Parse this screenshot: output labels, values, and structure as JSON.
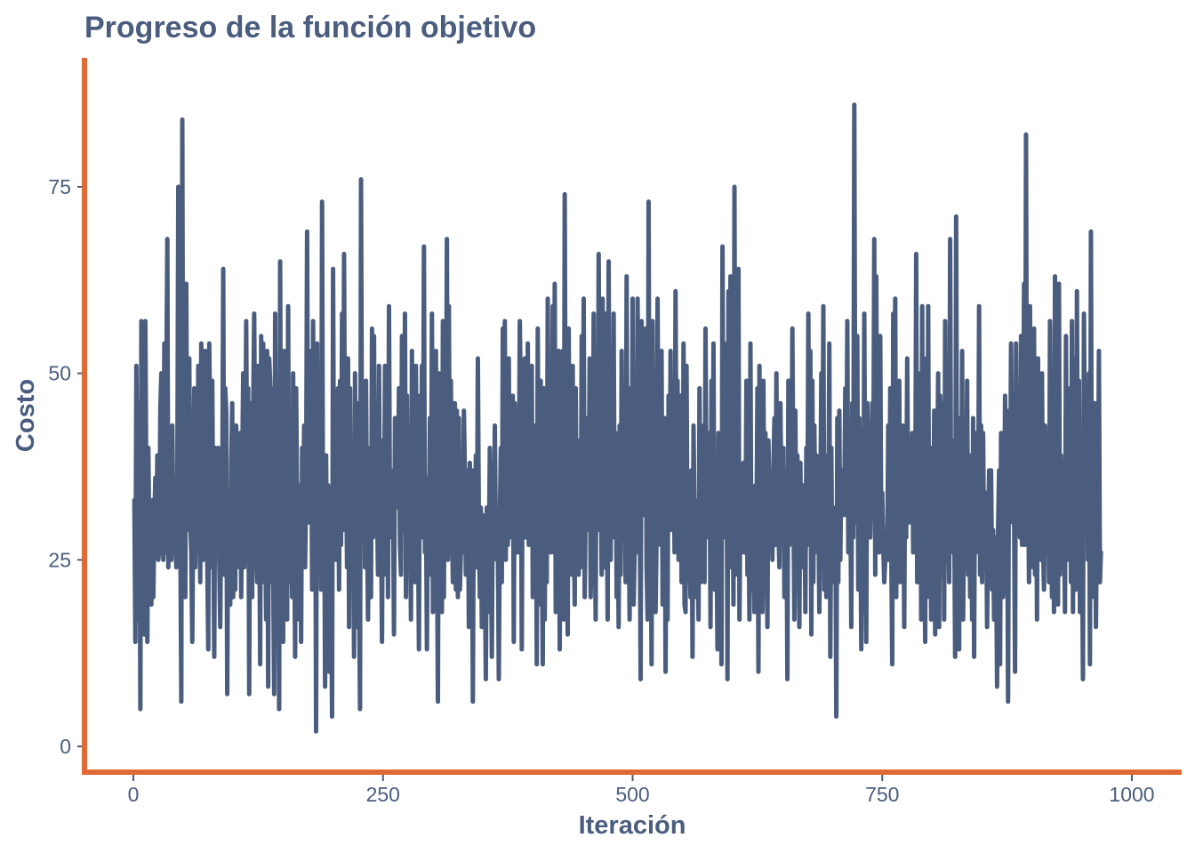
{
  "chart_data": {
    "type": "line",
    "title": "Progreso de la función objetivo",
    "xlabel": "Iteración",
    "ylabel": "Costo",
    "xlim": [
      0,
      1000
    ],
    "ylim": [
      0,
      90
    ],
    "x_ticks": [
      0,
      250,
      500,
      750,
      1000
    ],
    "y_ticks": [
      0,
      25,
      50,
      75
    ],
    "x_tick_labels": [
      "0",
      "250",
      "500",
      "750",
      "1000"
    ],
    "y_tick_labels": [
      "0",
      "25",
      "50",
      "75"
    ],
    "grid": false,
    "legend": "none",
    "series": [
      {
        "x_start": 1,
        "x_step": 1,
        "values": [
          33,
          14,
          51,
          28,
          17,
          46,
          5,
          57,
          22,
          45,
          15,
          57,
          33,
          14,
          40,
          27,
          32,
          19,
          33,
          20,
          30,
          36,
          28,
          39,
          25,
          27,
          45,
          50,
          30,
          25,
          54,
          26,
          48,
          68,
          24,
          34,
          32,
          25,
          43,
          30,
          34,
          28,
          24,
          34,
          75,
          30,
          30,
          6,
          84,
          25,
          48,
          20,
          62,
          29,
          35,
          52,
          30,
          26,
          14,
          33,
          48,
          24,
          40,
          28,
          51,
          33,
          22,
          54,
          36,
          25,
          43,
          53,
          30,
          25,
          13,
          54,
          41,
          24,
          49,
          30,
          12,
          40,
          27,
          33,
          40,
          25,
          16,
          33,
          33,
          64,
          23,
          48,
          45,
          7,
          34,
          28,
          19,
          38,
          46,
          20,
          40,
          21,
          43,
          33,
          36,
          24,
          42,
          20,
          37,
          50,
          24,
          33,
          57,
          30,
          48,
          7,
          46,
          31,
          20,
          45,
          58,
          36,
          27,
          22,
          51,
          32,
          11,
          55,
          22,
          54,
          40,
          29,
          17,
          53,
          8,
          52,
          49,
          22,
          48,
          25,
          7,
          58,
          22,
          43,
          28,
          5,
          65,
          23,
          32,
          14,
          53,
          30,
          29,
          17,
          59,
          22,
          44,
          39,
          20,
          50,
          30,
          12,
          48,
          33,
          24,
          17,
          35,
          14,
          40,
          26,
          43,
          24,
          35,
          69,
          30,
          34,
          46,
          53,
          21,
          57,
          31,
          46,
          2,
          54,
          28,
          33,
          40,
          21,
          73,
          27,
          38,
          8,
          39,
          22,
          35,
          10,
          33,
          24,
          4,
          64,
          30,
          46,
          25,
          33,
          48,
          21,
          49,
          27,
          58,
          29,
          66,
          34,
          40,
          24,
          52,
          16,
          48,
          25,
          29,
          38,
          12,
          50,
          16,
          30,
          46,
          22,
          5,
          76,
          36,
          30,
          42,
          24,
          49,
          30,
          17,
          33,
          40,
          20,
          56,
          28,
          55,
          29,
          46,
          33,
          23,
          51,
          26,
          31,
          14,
          41,
          26,
          51,
          23,
          44,
          20,
          59,
          30,
          37,
          28,
          34,
          15,
          44,
          33,
          44,
          32,
          48,
          27,
          23,
          55,
          33,
          29,
          58,
          20,
          47,
          30,
          41,
          33,
          17,
          53,
          24,
          48,
          22,
          51,
          27,
          30,
          13,
          47,
          28,
          51,
          28,
          67,
          26,
          34,
          13,
          36,
          27,
          44,
          23,
          58,
          18,
          45,
          26,
          53,
          30,
          6,
          50,
          37,
          40,
          18,
          57,
          20,
          52,
          33,
          68,
          25,
          59,
          28,
          49,
          30,
          22,
          30,
          46,
          21,
          45,
          20,
          44,
          21,
          26,
          37,
          26,
          45,
          37,
          23,
          24,
          37,
          16,
          38,
          27,
          37,
          6,
          37,
          25,
          39,
          24,
          52,
          30,
          20,
          32,
          16,
          31,
          27,
          24,
          9,
          32,
          18,
          25,
          40,
          30,
          12,
          34,
          28,
          43,
          28,
          25,
          28,
          9,
          30,
          40,
          22,
          56,
          30,
          57,
          25,
          49,
          27,
          52,
          28,
          35,
          31,
          47,
          14,
          46,
          27,
          40,
          26,
          31,
          57,
          47,
          13,
          49,
          33,
          52,
          28,
          33,
          54,
          27,
          39,
          34,
          51,
          20,
          37,
          26,
          43,
          11,
          56,
          19,
          26,
          49,
          30,
          11,
          48,
          17,
          40,
          22,
          60,
          28,
          47,
          26,
          34,
          59,
          26,
          62,
          18,
          33,
          22,
          53,
          13,
          37,
          26,
          53,
          17,
          74,
          35,
          31,
          15,
          56,
          27,
          47,
          23,
          51,
          30,
          19,
          48,
          28,
          35,
          23,
          41,
          24,
          55,
          30,
          60,
          20,
          32,
          29,
          44,
          35,
          52,
          20,
          28,
          23,
          58,
          31,
          17,
          51,
          29,
          66,
          36,
          40,
          23,
          60,
          26,
          24,
          58,
          37,
          17,
          65,
          32,
          25,
          52,
          28,
          58,
          29,
          42,
          20,
          34,
          16,
          43,
          23,
          53,
          28,
          43,
          37,
          22,
          63,
          24,
          33,
          17,
          48,
          22,
          60,
          19,
          26,
          47,
          26,
          60,
          27,
          38,
          9,
          57,
          32,
          46,
          31,
          56,
          24,
          17,
          73,
          28,
          32,
          11,
          57,
          27,
          37,
          18,
          28,
          60,
          33,
          45,
          27,
          53,
          19,
          37,
          44,
          10,
          36,
          17,
          47,
          29,
          53,
          33,
          29,
          42,
          26,
          61,
          31,
          49,
          25,
          30,
          47,
          22,
          22,
          54,
          19,
          18,
          51,
          26,
          36,
          26,
          20,
          37,
          12,
          43,
          30,
          33,
          20,
          28,
          17,
          48,
          22,
          38,
          28,
          43,
          22,
          56,
          34,
          35,
          28,
          42,
          16,
          49,
          27,
          54,
          21,
          38,
          29,
          13,
          42,
          31,
          33,
          11,
          67,
          32,
          54,
          28,
          49,
          9,
          61,
          29,
          63,
          24,
          39,
          19,
          75,
          23,
          41,
          33,
          64,
          17,
          34,
          26,
          34,
          38,
          26,
          28,
          49,
          23,
          33,
          17,
          54,
          21,
          30,
          30,
          18,
          35,
          28,
          48,
          10,
          51,
          26,
          44,
          18,
          49,
          26,
          42,
          26,
          16,
          41,
          33,
          33,
          35,
          25,
          37,
          44,
          27,
          50,
          29,
          29,
          24,
          46,
          34,
          30,
          40,
          20,
          37,
          36,
          9,
          49,
          27,
          41,
          29,
          56,
          34,
          17,
          45,
          24,
          39,
          30,
          16,
          38,
          24,
          29,
          32,
          35,
          18,
          40,
          27,
          58,
          29,
          53,
          15,
          49,
          22,
          43,
          29,
          39,
          26,
          33,
          18,
          31,
          50,
          26,
          59,
          21,
          39,
          20,
          38,
          28,
          54,
          12,
          40,
          22,
          32,
          22,
          32,
          4,
          44,
          22,
          45,
          25,
          37,
          35,
          31,
          33,
          48,
          31,
          57,
          26,
          43,
          35,
          16,
          46,
          28,
          86,
          36,
          30,
          55,
          21,
          44,
          33,
          13,
          41,
          18,
          58,
          29,
          14,
          46,
          37,
          42,
          28,
          35,
          46,
          33,
          68,
          23,
          63,
          31,
          54,
          26,
          55,
          28,
          34,
          27,
          22,
          25,
          28,
          25,
          43,
          25,
          48,
          27,
          11,
          58,
          33,
          60,
          20,
          48,
          26,
          49,
          22,
          37,
          25,
          43,
          16,
          41,
          28,
          52,
          30,
          31,
          41,
          30,
          42,
          26,
          30,
          28,
          66,
          22,
          46,
          24,
          50,
          17,
          59,
          23,
          31,
          14,
          52,
          22,
          59,
          20,
          39,
          17,
          40,
          25,
          45,
          15,
          44,
          35,
          50,
          16,
          47,
          23,
          32,
          46,
          17,
          57,
          27,
          30,
          30,
          22,
          68,
          28,
          41,
          26,
          33,
          12,
          71,
          29,
          42,
          13,
          44,
          20,
          53,
          17,
          31,
          44,
          29,
          49,
          23,
          39,
          20,
          36,
          17,
          44,
          12,
          42,
          26,
          35,
          28,
          59,
          23,
          43,
          22,
          42,
          25,
          24,
          34,
          16,
          28,
          37,
          27,
          37,
          21,
          29,
          17,
          26,
          28,
          8,
          29,
          37,
          11,
          42,
          29,
          20,
          25,
          47,
          33,
          41,
          6,
          45,
          30,
          54,
          37,
          44,
          32,
          10,
          54,
          33,
          35,
          35,
          28,
          55,
          27,
          32,
          62,
          27,
          82,
          30,
          37,
          22,
          59,
          25,
          51,
          24,
          56,
          23,
          41,
          17,
          52,
          26,
          38,
          25,
          50,
          27,
          21,
          43,
          26,
          32,
          38,
          22,
          57,
          34,
          20,
          37,
          18,
          63,
          33,
          43,
          19,
          62,
          23,
          39,
          30,
          24,
          32,
          18,
          55,
          28,
          38,
          25,
          48,
          22,
          57,
          18,
          52,
          33,
          21,
          61,
          23,
          49,
          18,
          35,
          30,
          9,
          58,
          38,
          30,
          47,
          25,
          50,
          11,
          69,
          23,
          42,
          20,
          46,
          16,
          31,
          27,
          53,
          22,
          26
        ]
      }
    ]
  }
}
